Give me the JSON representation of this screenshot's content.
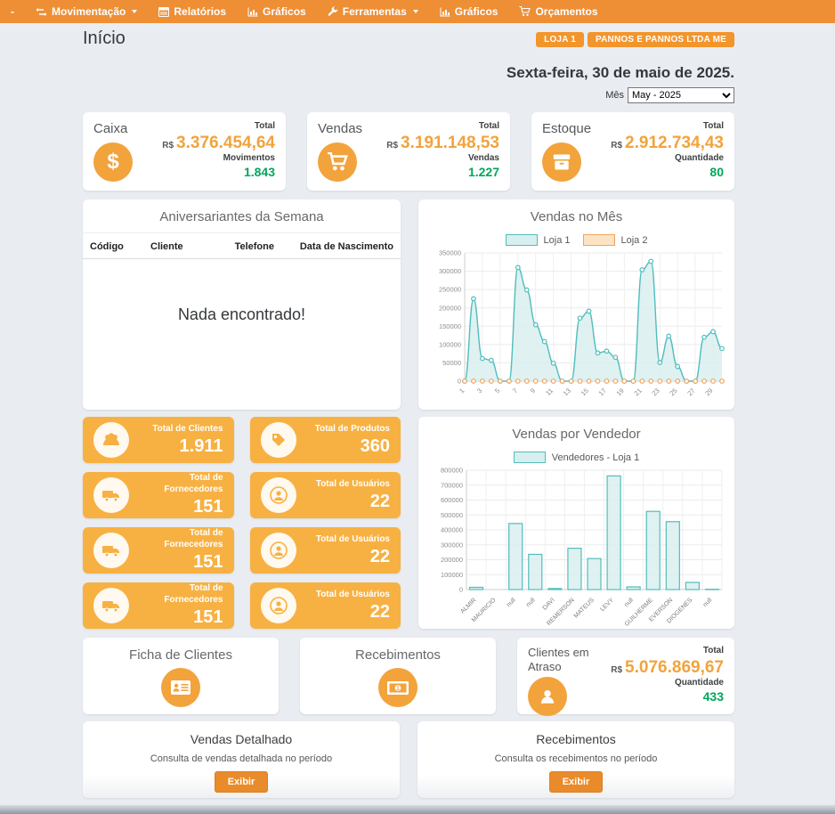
{
  "navbar": {
    "items": [
      {
        "label": "-"
      },
      {
        "label": "Movimentação",
        "icon": "transfer-icon",
        "has_caret": true
      },
      {
        "label": "Relatórios",
        "icon": "report-icon"
      },
      {
        "label": "Gráficos",
        "icon": "bar-chart-icon"
      },
      {
        "label": "Ferramentas",
        "icon": "wrench-icon",
        "has_caret": true
      },
      {
        "label": "Gráficos",
        "icon": "bar-chart-icon"
      },
      {
        "label": "Orçamentos",
        "icon": "cart-icon"
      }
    ]
  },
  "header": {
    "title": "Início",
    "badges": [
      "LOJA 1",
      "PANNOS E PANNOS LTDA ME"
    ],
    "date": "Sexta-feira, 30 de maio de 2025.",
    "month_label": "Mês",
    "month_value": "May - 2025"
  },
  "summary_cards": [
    {
      "title": "Caixa",
      "icon": "dollar-icon",
      "total_label": "Total",
      "currency": "R$",
      "amount": "3.376.454,64",
      "count_label": "Movimentos",
      "count_value": "1.843"
    },
    {
      "title": "Vendas",
      "icon": "cart-icon",
      "total_label": "Total",
      "currency": "R$",
      "amount": "3.191.148,53",
      "count_label": "Vendas",
      "count_value": "1.227"
    },
    {
      "title": "Estoque",
      "icon": "box-icon",
      "total_label": "Total",
      "currency": "R$",
      "amount": "2.912.734,43",
      "count_label": "Quantidade",
      "count_value": "80"
    }
  ],
  "birthdays": {
    "title": "Aniversariantes da Semana",
    "columns": [
      "Código",
      "Cliente",
      "Telefone",
      "Data de Nascimento"
    ],
    "empty_message": "Nada encontrado!"
  },
  "tiles": [
    {
      "label": "Total de Clientes",
      "value": "1.911",
      "icon": "users-icon"
    },
    {
      "label": "Total de Produtos",
      "value": "360",
      "icon": "tag-icon"
    },
    {
      "label": "Total de Fornecedores",
      "value": "151",
      "icon": "truck-icon"
    },
    {
      "label": "Total de Usuários",
      "value": "22",
      "icon": "user-icon"
    },
    {
      "label": "Total de Fornecedores",
      "value": "151",
      "icon": "truck-icon"
    },
    {
      "label": "Total de Usuários",
      "value": "22",
      "icon": "user-icon"
    },
    {
      "label": "Total de Fornecedores",
      "value": "151",
      "icon": "truck-icon"
    },
    {
      "label": "Total de Usuários",
      "value": "22",
      "icon": "user-icon"
    }
  ],
  "chart_data": [
    {
      "type": "area",
      "title": "Vendas no Mês",
      "x": [
        1,
        2,
        3,
        4,
        5,
        6,
        7,
        8,
        9,
        10,
        11,
        12,
        13,
        14,
        15,
        16,
        17,
        18,
        19,
        20,
        21,
        22,
        23,
        24,
        25,
        26,
        27,
        28,
        29,
        30
      ],
      "x_ticks_every_odd_day": true,
      "ylim": [
        0,
        350000
      ],
      "ytick_step": 50000,
      "grid": true,
      "legend_position": "top",
      "series": [
        {
          "name": "Loja 1",
          "color": "#52bdbd",
          "fill": "#d9eeee",
          "values": [
            0,
            225000,
            62000,
            57000,
            0,
            0,
            310000,
            249000,
            154000,
            108000,
            49000,
            0,
            0,
            172000,
            191000,
            77000,
            82000,
            65000,
            0,
            0,
            304000,
            327000,
            51000,
            123000,
            40000,
            0,
            0,
            120000,
            135000,
            89000
          ]
        },
        {
          "name": "Loja 2",
          "color": "#f0a35e",
          "fill": "#fce3c3",
          "markers_only": true,
          "values": [
            0,
            0,
            0,
            0,
            0,
            0,
            0,
            0,
            0,
            0,
            0,
            0,
            0,
            0,
            0,
            0,
            0,
            0,
            0,
            0,
            0,
            0,
            0,
            0,
            0,
            0,
            0,
            0,
            0,
            0
          ]
        }
      ]
    },
    {
      "type": "bar",
      "title": "Vendas por Vendedor",
      "categories": [
        "ALMIR",
        "MAURICIO",
        "null",
        "null",
        "DAVI",
        "REMERSON",
        "MATEUS",
        "LEVY",
        "null",
        "GUILHERME",
        "EVERSON",
        "DIOGENES",
        "null"
      ],
      "ylim": [
        0,
        800000
      ],
      "ytick_step": 100000,
      "grid": true,
      "legend_position": "top",
      "series": [
        {
          "name": "Vendedores - Loja 1",
          "color": "#52bdbd",
          "fill": "#d9eeee",
          "values": [
            15000,
            0,
            443000,
            236000,
            7000,
            277000,
            208000,
            762000,
            18000,
            524000,
            455000,
            48000,
            2000
          ]
        }
      ]
    }
  ],
  "action_cards": [
    {
      "title": "Ficha de Clientes",
      "icon": "id-card-icon"
    },
    {
      "title": "Recebimentos",
      "icon": "banknote-icon"
    }
  ],
  "overdue_card": {
    "title": "Clientes em Atraso",
    "icon": "user-icon",
    "total_label": "Total",
    "currency": "R$",
    "amount": "5.076.869,67",
    "count_label": "Quantidade",
    "count_value": "433"
  },
  "bottom_panels": [
    {
      "title": "Vendas Detalhado",
      "description": "Consulta de vendas detalhada no período",
      "button_label": "Exibir"
    },
    {
      "title": "Recebimentos",
      "description": "Consulta os recebimentos no período",
      "button_label": "Exibir"
    }
  ],
  "colors": {
    "navbar_orange": "#ee8f35",
    "tile_orange": "#f7b142",
    "accent_orange": "#f2a33c",
    "green": "#00a65a",
    "teal": "#52bdbd",
    "loja2_orange": "#f0a35e",
    "background": "#e9edf2"
  }
}
